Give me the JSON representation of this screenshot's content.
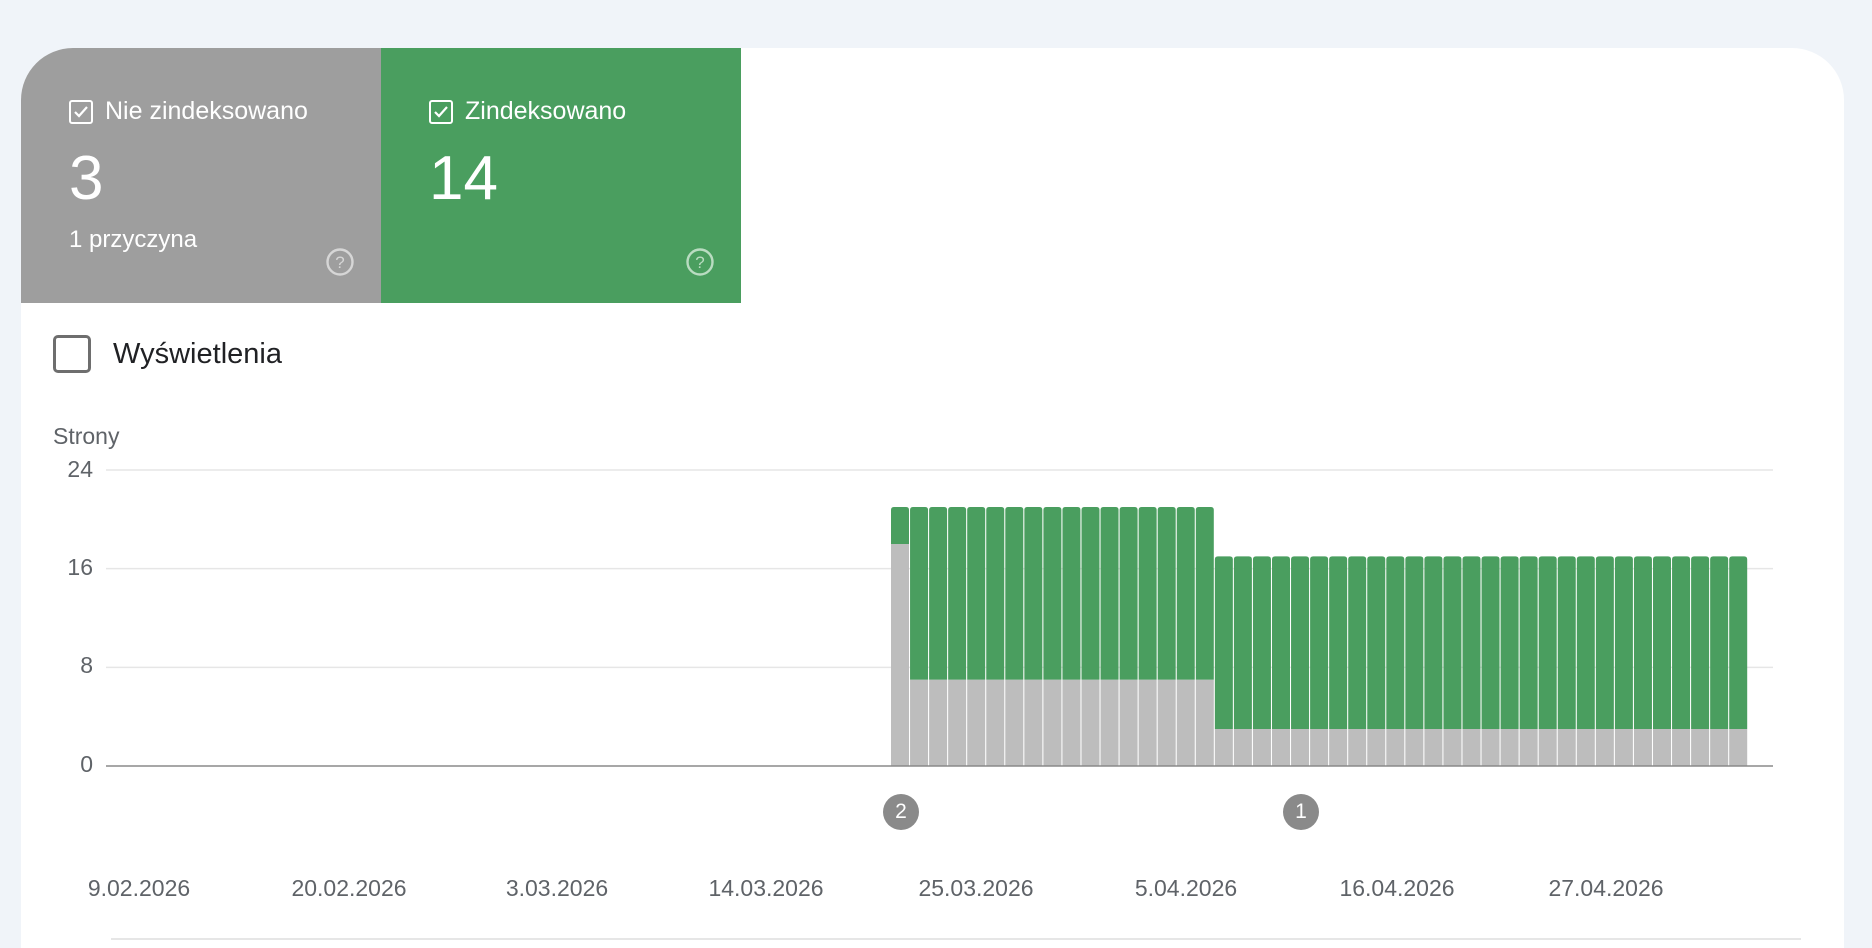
{
  "tiles": [
    {
      "label": "Nie zindeksowano",
      "value": "3",
      "sub": "1 przyczyna",
      "color": "#9e9e9e"
    },
    {
      "label": "Zindeksowano",
      "value": "14",
      "sub": "",
      "color": "#4a9e5f"
    }
  ],
  "metric_toggle": {
    "label": "Wyświetlenia",
    "checked": false
  },
  "chart_data": {
    "type": "bar",
    "stacked": true,
    "ylabel": "Strony",
    "ylim": [
      0,
      24
    ],
    "yticks": [
      "24",
      "16",
      "8",
      "0"
    ],
    "xtick_labels": [
      "9.02.2026",
      "20.02.2026",
      "3.03.2026",
      "14.03.2026",
      "25.03.2026",
      "5.04.2026",
      "16.04.2026",
      "27.04.2026"
    ],
    "x_start": "9.02.2026",
    "x_end": "1.05.2026",
    "series": [
      {
        "color": "#bdbdbd",
        "values": [
          0,
          0,
          0,
          0,
          0,
          0,
          0,
          0,
          0,
          0,
          0,
          0,
          0,
          0,
          0,
          0,
          0,
          0,
          0,
          0,
          0,
          0,
          0,
          0,
          0,
          0,
          0,
          0,
          0,
          0,
          0,
          0,
          0,
          0,
          0,
          0,
          0,
          0,
          0,
          0,
          0,
          18,
          7,
          7,
          7,
          7,
          7,
          7,
          7,
          7,
          7,
          7,
          7,
          7,
          7,
          7,
          7,
          7,
          3,
          3,
          3,
          3,
          3,
          3,
          3,
          3,
          3,
          3,
          3,
          3,
          3,
          3,
          3,
          3,
          3,
          3,
          3,
          3,
          3,
          3,
          3,
          3,
          3,
          3,
          3,
          3
        ]
      },
      {
        "color": "#4a9e5f",
        "values": [
          0,
          0,
          0,
          0,
          0,
          0,
          0,
          0,
          0,
          0,
          0,
          0,
          0,
          0,
          0,
          0,
          0,
          0,
          0,
          0,
          0,
          0,
          0,
          0,
          0,
          0,
          0,
          0,
          0,
          0,
          0,
          0,
          0,
          0,
          0,
          0,
          0,
          0,
          0,
          0,
          0,
          3,
          14,
          14,
          14,
          14,
          14,
          14,
          14,
          14,
          14,
          14,
          14,
          14,
          14,
          14,
          14,
          14,
          14,
          14,
          14,
          14,
          14,
          14,
          14,
          14,
          14,
          14,
          14,
          14,
          14,
          14,
          14,
          14,
          14,
          14,
          14,
          14,
          14,
          14,
          14,
          14,
          14,
          14,
          14,
          14
        ]
      }
    ],
    "annotations": [
      {
        "label": "2",
        "date": "23.03.2026"
      },
      {
        "label": "1",
        "date": "12.04.2026"
      }
    ]
  }
}
